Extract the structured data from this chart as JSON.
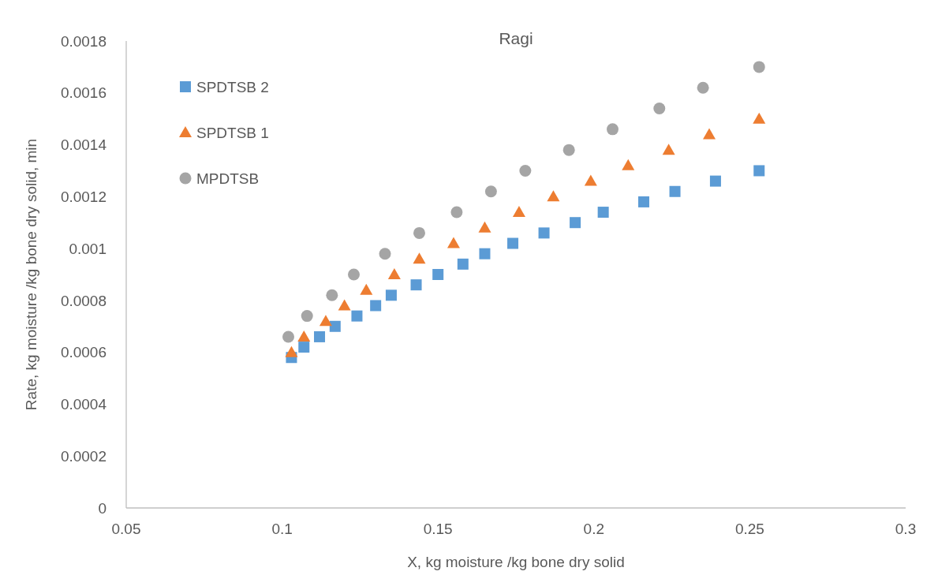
{
  "chart_data": {
    "type": "scatter",
    "title": "Ragi",
    "xlabel": "X, kg moisture /kg bone dry solid",
    "ylabel": "Rate, kg moisture /kg bone dry solid, min",
    "xlim": [
      0.05,
      0.3
    ],
    "xticks": [
      0.05,
      0.1,
      0.15,
      0.2,
      0.25,
      0.3
    ],
    "ylim": [
      0,
      0.0018
    ],
    "yticks": [
      0,
      0.0002,
      0.0004,
      0.0006,
      0.0008,
      0.001,
      0.0012,
      0.0014,
      0.0016,
      0.0018
    ],
    "grid": false,
    "legend": "top left",
    "series": [
      {
        "name": "SPDTSB 2",
        "color": "#5b9bd5",
        "marker": "square",
        "x": [
          0.103,
          0.107,
          0.112,
          0.117,
          0.124,
          0.13,
          0.135,
          0.143,
          0.15,
          0.158,
          0.165,
          0.174,
          0.184,
          0.194,
          0.203,
          0.216,
          0.226,
          0.239,
          0.253
        ],
        "values": [
          0.00058,
          0.00062,
          0.00066,
          0.0007,
          0.00074,
          0.00078,
          0.00082,
          0.00086,
          0.0009,
          0.00094,
          0.00098,
          0.00102,
          0.00106,
          0.0011,
          0.00114,
          0.00118,
          0.00122,
          0.00126,
          0.0013
        ]
      },
      {
        "name": "SPDTSB 1",
        "color": "#ed7d31",
        "marker": "triangle",
        "x": [
          0.103,
          0.107,
          0.114,
          0.12,
          0.127,
          0.136,
          0.144,
          0.155,
          0.165,
          0.176,
          0.187,
          0.199,
          0.211,
          0.224,
          0.237,
          0.253
        ],
        "values": [
          0.0006,
          0.00066,
          0.00072,
          0.00078,
          0.00084,
          0.0009,
          0.00096,
          0.00102,
          0.00108,
          0.00114,
          0.0012,
          0.00126,
          0.00132,
          0.00138,
          0.00144,
          0.0015
        ]
      },
      {
        "name": "MPDTSB",
        "color": "#a5a5a5",
        "marker": "circle",
        "x": [
          0.102,
          0.108,
          0.116,
          0.123,
          0.133,
          0.144,
          0.156,
          0.167,
          0.178,
          0.192,
          0.206,
          0.221,
          0.235,
          0.253
        ],
        "values": [
          0.00066,
          0.00074,
          0.00082,
          0.0009,
          0.00098,
          0.00106,
          0.00114,
          0.00122,
          0.0013,
          0.00138,
          0.00146,
          0.00154,
          0.00162,
          0.0017
        ]
      }
    ]
  }
}
